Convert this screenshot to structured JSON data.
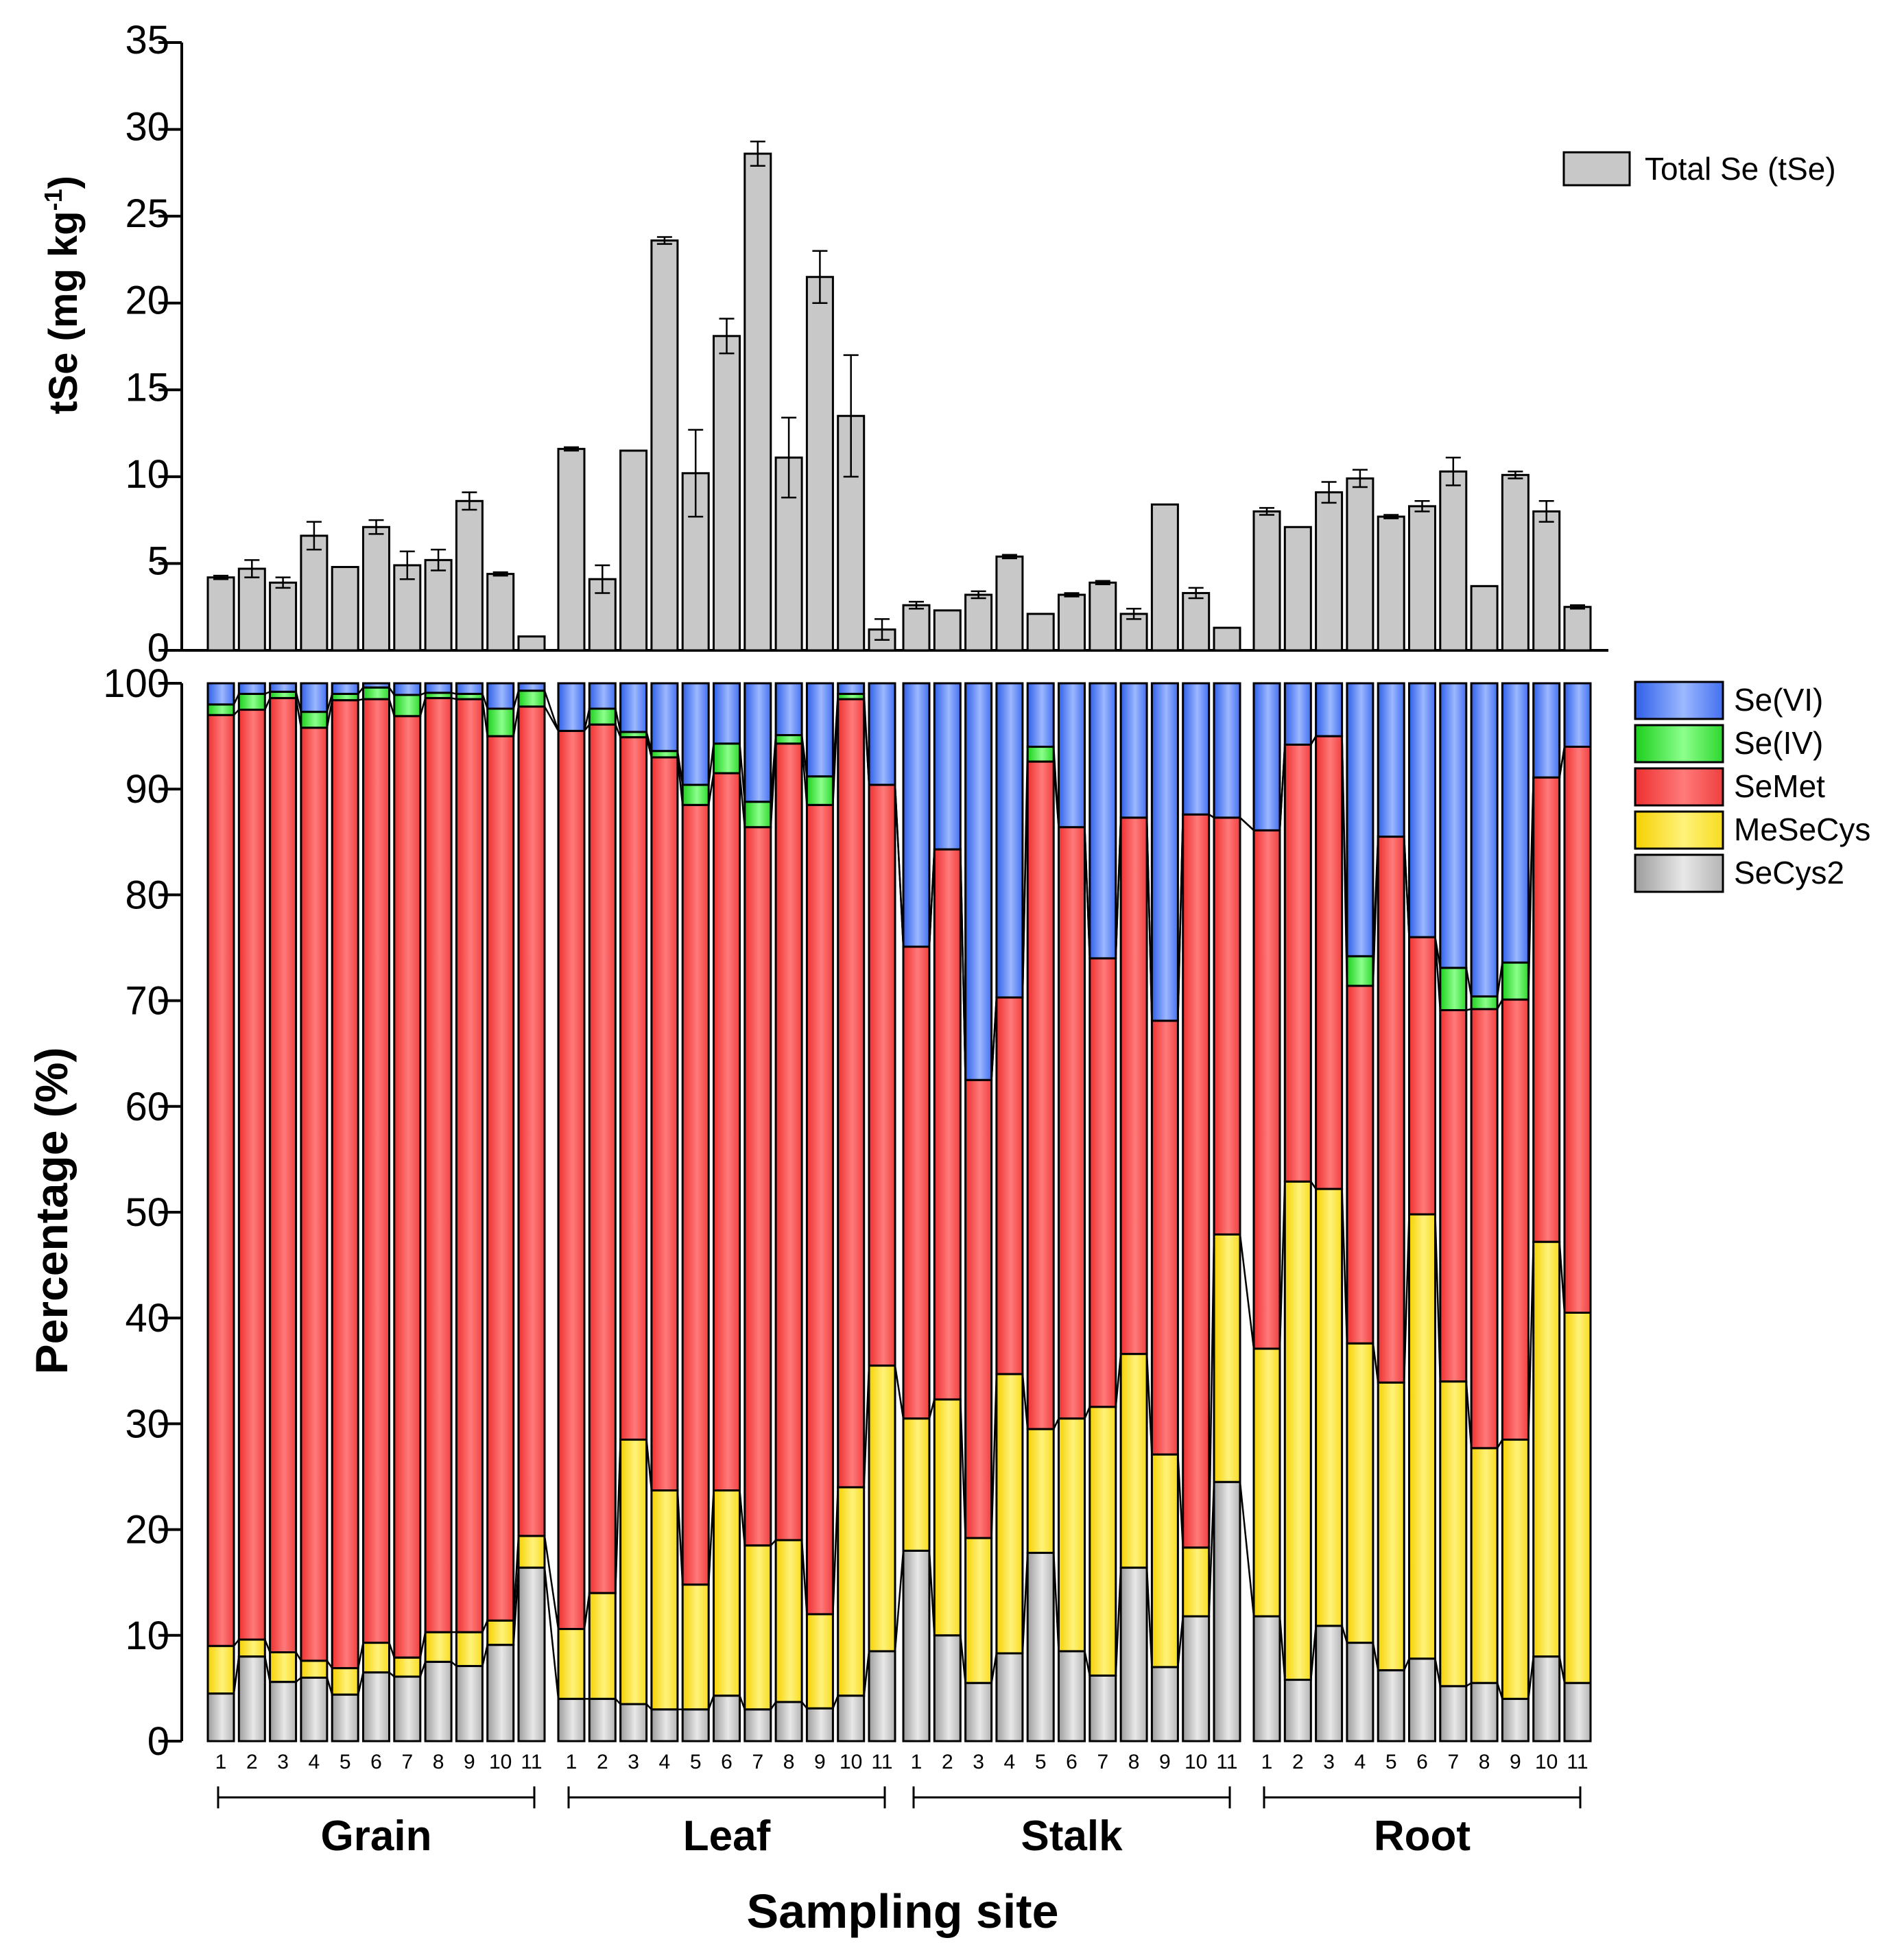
{
  "chart_data": [
    {
      "type": "bar",
      "title": "",
      "ylabel": "tSe (mg kg-1)",
      "ylabel_parts": {
        "main": "tSe (mg kg",
        "sup": "-1",
        "end": ")"
      },
      "ylim": [
        0,
        35
      ],
      "yticks": [
        "0",
        "5",
        "10",
        "15",
        "20",
        "25",
        "30",
        "35"
      ],
      "legend": [
        "Total Se (tSe)"
      ],
      "legend_position": "top-right",
      "color": "#c8c8c8",
      "groups": [
        {
          "name": "Grain",
          "values": [
            4.2,
            4.7,
            3.9,
            6.6,
            4.8,
            7.1,
            4.9,
            5.2,
            8.6,
            4.4,
            0.8
          ],
          "errors": [
            0.1,
            0.5,
            0.3,
            0.8,
            0,
            0.4,
            0.8,
            0.6,
            0.5,
            0.1,
            0
          ]
        },
        {
          "name": "Leaf",
          "values": [
            11.6,
            4.1,
            11.5,
            23.6,
            10.2,
            18.1,
            28.6,
            11.1,
            21.5,
            13.5,
            1.2
          ],
          "errors": [
            0.1,
            0.8,
            0,
            0.2,
            2.5,
            1.0,
            0.7,
            2.3,
            1.5,
            3.5,
            0.6
          ]
        },
        {
          "name": "Stalk",
          "values": [
            2.6,
            2.3,
            3.2,
            5.4,
            2.1,
            3.2,
            3.9,
            2.1,
            8.4,
            3.3,
            1.3
          ],
          "errors": [
            0.2,
            0,
            0.2,
            0.1,
            0,
            0.1,
            0.1,
            0.3,
            0,
            0.3,
            0
          ]
        },
        {
          "name": "Root",
          "values": [
            8.0,
            7.1,
            9.1,
            9.9,
            7.7,
            8.3,
            10.3,
            3.7,
            10.1,
            8.0,
            2.5
          ],
          "errors": [
            0.2,
            0,
            0.6,
            0.5,
            0.1,
            0.3,
            0.8,
            0,
            0.2,
            0.6,
            0.1
          ]
        }
      ]
    },
    {
      "type": "bar",
      "stacked": true,
      "title": "",
      "xlabel": "Sampling site",
      "ylabel": "Percentage (%)",
      "ylim": [
        0,
        100
      ],
      "yticks": [
        "0",
        "10",
        "20",
        "30",
        "40",
        "50",
        "60",
        "70",
        "80",
        "90",
        "100"
      ],
      "site_labels": [
        "1",
        "2",
        "3",
        "4",
        "5",
        "6",
        "7",
        "8",
        "9",
        "10",
        "11"
      ],
      "legend_position": "right",
      "series": [
        {
          "name": "SeCys2",
          "color": "#c4c4c4"
        },
        {
          "name": "MeSeCys",
          "color": "#ffe84a"
        },
        {
          "name": "SeMet",
          "color": "#ff5555"
        },
        {
          "name": "Se(IV)",
          "color": "#3fe03f"
        },
        {
          "name": "Se(VI)",
          "color": "#4f7dfa"
        }
      ],
      "legend_order": [
        "Se(VI)",
        "Se(IV)",
        "SeMet",
        "MeSeCys",
        "SeCys2"
      ],
      "groups": [
        {
          "name": "Grain",
          "SeCys2": [
            4.5,
            8.0,
            5.6,
            6.0,
            4.4,
            6.5,
            6.1,
            7.5,
            7.1,
            9.1,
            16.4
          ],
          "MeSeCys": [
            4.5,
            1.6,
            2.8,
            1.6,
            2.5,
            2.8,
            1.8,
            2.8,
            3.2,
            2.3,
            3.0
          ],
          "SeMet": [
            88.0,
            87.9,
            90.2,
            88.2,
            91.5,
            89.2,
            89.0,
            88.3,
            88.2,
            83.6,
            78.4
          ],
          "Se(IV)": [
            1.0,
            1.5,
            0.6,
            1.5,
            0.6,
            1.1,
            2.0,
            0.5,
            0.5,
            2.6,
            1.5
          ],
          "Se(VI)": [
            2.0,
            1.0,
            0.8,
            2.7,
            1.0,
            0.4,
            1.1,
            0.9,
            1.0,
            2.4,
            0.7
          ]
        },
        {
          "name": "Leaf",
          "SeCys2": [
            4.0,
            4.0,
            3.5,
            3.0,
            3.0,
            4.3,
            3.0,
            3.7,
            3.1,
            4.3,
            8.5
          ],
          "MeSeCys": [
            6.6,
            10.0,
            25.0,
            20.7,
            11.8,
            19.4,
            15.5,
            15.3,
            8.9,
            19.7,
            27.0
          ],
          "SeMet": [
            84.9,
            82.1,
            66.4,
            69.3,
            73.7,
            67.8,
            67.9,
            75.3,
            76.5,
            74.5,
            54.9
          ],
          "Se(IV)": [
            0,
            1.5,
            0.5,
            0.6,
            1.9,
            2.8,
            2.4,
            0.8,
            2.7,
            0.5,
            0
          ],
          "Se(VI)": [
            4.5,
            2.4,
            4.6,
            6.4,
            9.6,
            5.7,
            11.2,
            4.9,
            8.8,
            1.0,
            9.6
          ]
        },
        {
          "name": "Stalk",
          "SeCys2": [
            18.0,
            10.0,
            5.5,
            8.3,
            17.8,
            8.5,
            6.2,
            16.4,
            7.0,
            11.8,
            24.5
          ],
          "MeSeCys": [
            12.5,
            22.3,
            13.7,
            26.4,
            11.7,
            22.0,
            25.4,
            20.2,
            20.1,
            6.5,
            23.4
          ],
          "SeMet": [
            44.6,
            52.0,
            43.3,
            35.6,
            63.1,
            55.9,
            42.4,
            50.7,
            41.0,
            69.3,
            39.4
          ],
          "Se(IV)": [
            0,
            0,
            0,
            0,
            1.4,
            0,
            0,
            0,
            0,
            0,
            0
          ],
          "Se(VI)": [
            24.9,
            15.7,
            37.5,
            29.7,
            6.0,
            13.6,
            26.0,
            12.7,
            31.9,
            12.4,
            12.7
          ]
        },
        {
          "name": "Root",
          "SeCys2": [
            11.8,
            5.8,
            10.9,
            9.3,
            6.7,
            7.8,
            5.2,
            5.5,
            4.0,
            8.0,
            5.5
          ],
          "MeSeCys": [
            25.3,
            47.1,
            41.3,
            28.3,
            27.2,
            42.0,
            28.8,
            22.2,
            24.5,
            39.2,
            35.0
          ],
          "SeMet": [
            49.0,
            41.3,
            42.8,
            33.8,
            51.6,
            26.2,
            35.1,
            41.5,
            41.6,
            43.9,
            53.5
          ],
          "Se(IV)": [
            0,
            0,
            0,
            2.8,
            0,
            0,
            4.0,
            1.2,
            3.5,
            0,
            0
          ],
          "Se(VI)": [
            13.9,
            5.8,
            5.0,
            25.8,
            14.5,
            24.0,
            26.9,
            29.6,
            26.4,
            8.9,
            6.0
          ]
        }
      ]
    }
  ]
}
